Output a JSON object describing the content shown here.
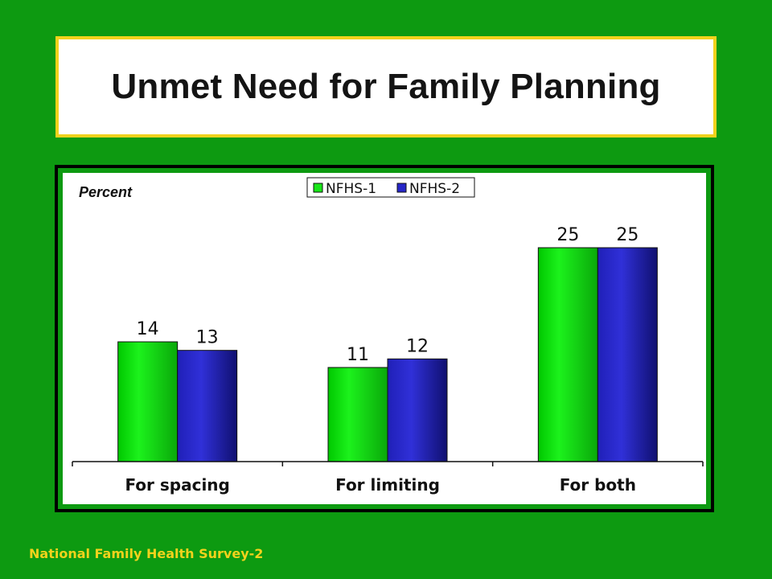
{
  "title": "Unmet Need for Family Planning",
  "footer": "National Family Health Survey-2",
  "chart_data": {
    "type": "bar",
    "ylabel": "Percent",
    "categories": [
      "For spacing",
      "For limiting",
      "For both"
    ],
    "series": [
      {
        "name": "NFHS-1",
        "values": [
          14,
          11,
          25
        ],
        "color": "#19e619"
      },
      {
        "name": "NFHS-2",
        "values": [
          13,
          12,
          25
        ],
        "color": "#2626c8"
      }
    ],
    "ylim": [
      0,
      28
    ],
    "grid": false,
    "legend_position": "top-center",
    "data_labels": true
  }
}
